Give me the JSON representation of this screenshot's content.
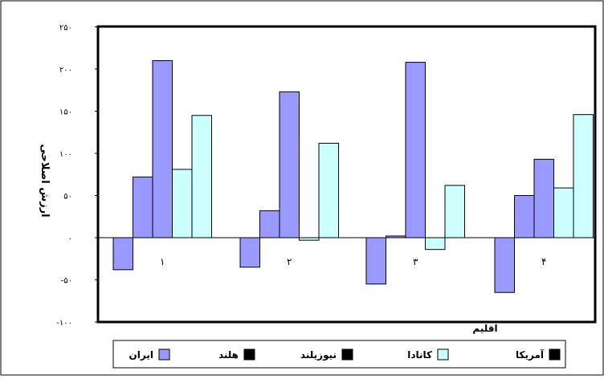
{
  "chart_data": {
    "type": "bar",
    "title": "",
    "xlabel": "اقلیم",
    "ylabel": "ارزش اصلاحی",
    "ylim": [
      -100,
      250
    ],
    "yticks": [
      {
        "value": 250,
        "label": "۲۵۰"
      },
      {
        "value": 200,
        "label": "۲۰۰"
      },
      {
        "value": 150,
        "label": "۱۵۰"
      },
      {
        "value": 100,
        "label": "۱۰۰"
      },
      {
        "value": 50,
        "label": "۵۰"
      },
      {
        "value": 0,
        "label": "۰"
      },
      {
        "value": -50,
        "label": "-۵۰"
      },
      {
        "value": -100,
        "label": "-۱۰۰"
      }
    ],
    "categories": [
      "۱",
      "۲",
      "۳",
      "۴"
    ],
    "series": [
      {
        "name": "ایران",
        "color": "#9999ff",
        "values": [
          -38,
          -35,
          -55,
          -65
        ]
      },
      {
        "name": "هلند",
        "color": "#9999ff",
        "values": [
          72,
          32,
          2,
          50
        ]
      },
      {
        "name": "نیوزیلند",
        "color": "#9999ff",
        "values": [
          210,
          173,
          208,
          93
        ]
      },
      {
        "name": "کانادا",
        "color": "#ccffff",
        "values": [
          81,
          -3,
          -14,
          59
        ]
      },
      {
        "name": "آمریکا",
        "color": "#ccffff",
        "values": [
          145,
          112,
          62,
          146
        ]
      }
    ],
    "legend": [
      {
        "label": "ایران",
        "color": "#9999ff"
      },
      {
        "label": "هلند",
        "color": "#000000"
      },
      {
        "label": "نیوزیلند",
        "color": "#000000"
      },
      {
        "label": "کانادا",
        "color": "#ccffff"
      },
      {
        "label": "آمریکا",
        "color": "#000000"
      }
    ],
    "legend_position": "bottom",
    "grid": false
  }
}
